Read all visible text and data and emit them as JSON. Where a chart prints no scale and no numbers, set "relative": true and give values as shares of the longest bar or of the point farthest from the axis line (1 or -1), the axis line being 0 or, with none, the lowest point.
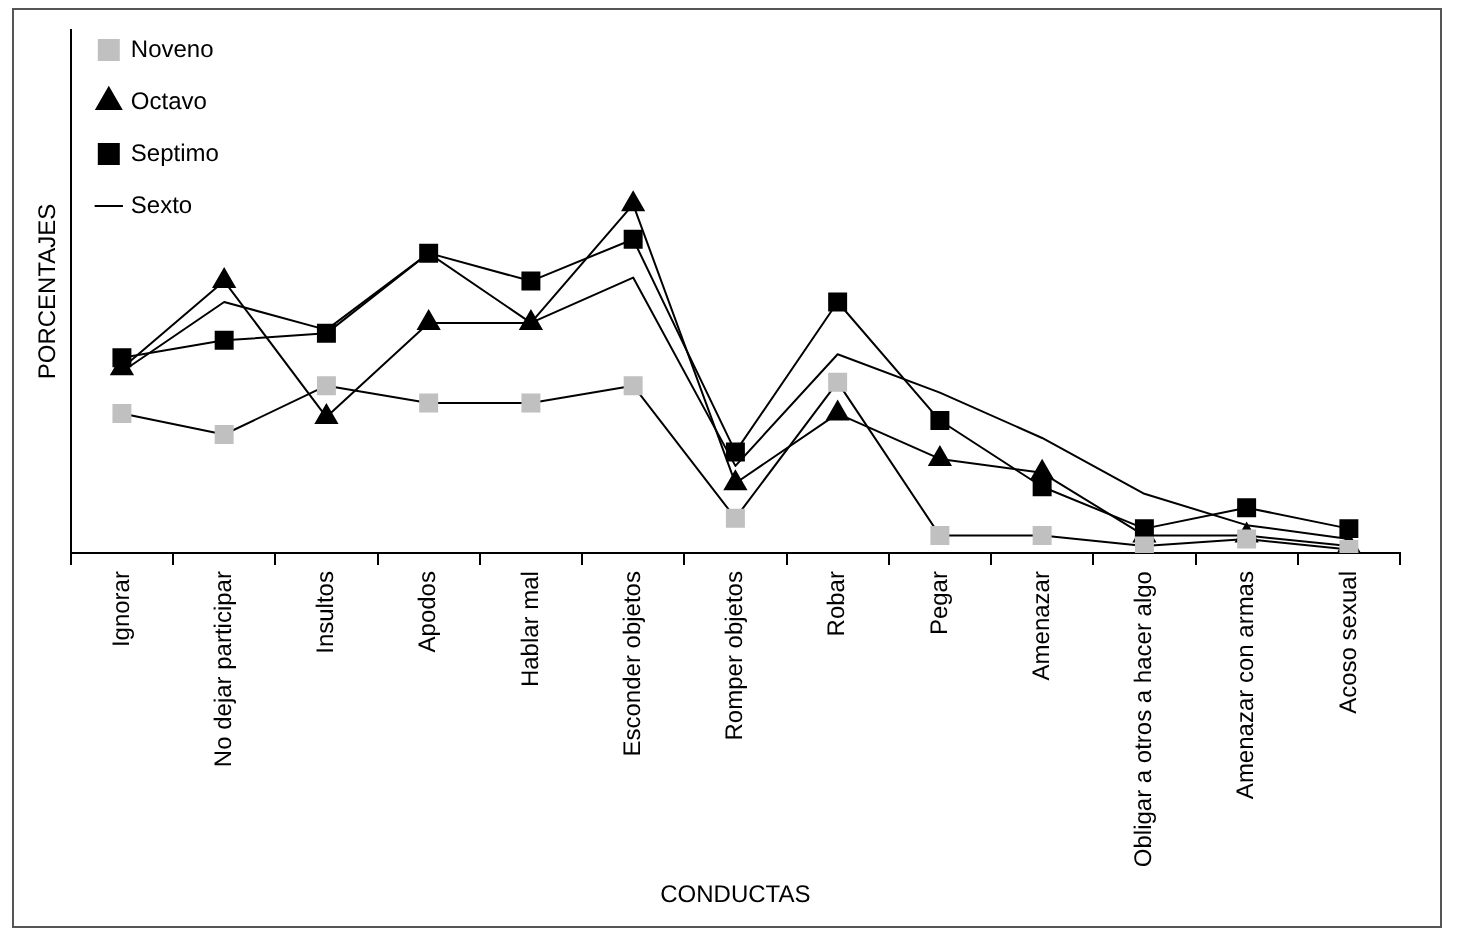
{
  "chart_data": {
    "type": "line",
    "relative": true,
    "xlabel": "CONDUCTAS",
    "ylabel": "PORCENTAJES",
    "legend": "top left",
    "line_style": "solid",
    "categories": [
      "Ignorar",
      "No dejar participar",
      "Insultos",
      "Apodos",
      "Hablar mal",
      "Esconder objetos",
      "Romper objetos",
      "Robar",
      "Pegar",
      "Amenazar",
      "Obligar a otros a hacer algo",
      "Amenazar con armas",
      "Acoso sexual"
    ],
    "series": [
      {
        "name": "Sexto",
        "color": "#000000",
        "marker": "none",
        "values": [
          0.52,
          0.72,
          0.64,
          0.86,
          0.66,
          0.79,
          0.25,
          0.57,
          0.46,
          0.33,
          0.17,
          0.08,
          0.04
        ]
      },
      {
        "name": "Septimo",
        "color": "#000000",
        "marker": "square",
        "values": [
          0.56,
          0.61,
          0.63,
          0.86,
          0.78,
          0.9,
          0.29,
          0.72,
          0.38,
          0.19,
          0.07,
          0.13,
          0.07
        ]
      },
      {
        "name": "Octavo",
        "color": "#000000",
        "marker": "triangle",
        "values": [
          0.53,
          0.78,
          0.39,
          0.66,
          0.66,
          1,
          0.2,
          0.4,
          0.27,
          0.23,
          0.05,
          0.05,
          0.02
        ]
      },
      {
        "name": "Noveno",
        "color": "#c0c0c0",
        "marker": "square",
        "values": [
          0.4,
          0.34,
          0.48,
          0.43,
          0.43,
          0.48,
          0.1,
          0.49,
          0.05,
          0.05,
          0.02,
          0.04,
          0.01
        ]
      }
    ]
  }
}
